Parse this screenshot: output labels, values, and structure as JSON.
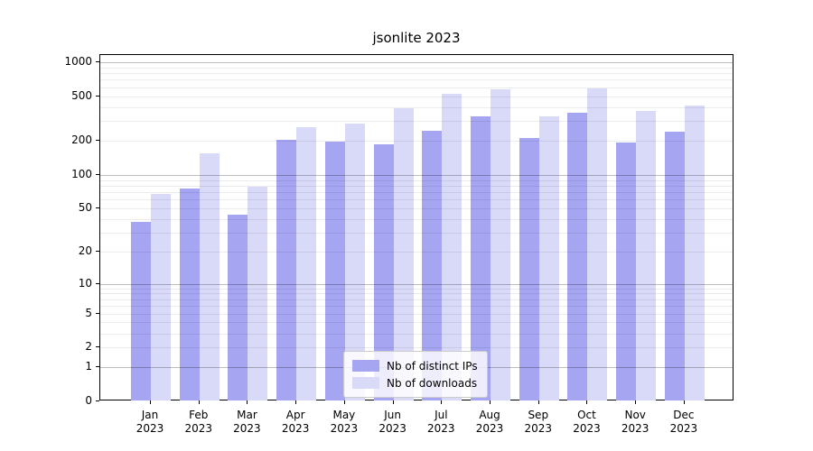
{
  "chart_data": {
    "type": "bar",
    "title": "jsonlite 2023",
    "categories": [
      "Jan",
      "Feb",
      "Mar",
      "Apr",
      "May",
      "Jun",
      "Jul",
      "Aug",
      "Sep",
      "Oct",
      "Nov",
      "Dec"
    ],
    "year_label": "2023",
    "series": [
      {
        "name": "Nb of distinct IPs",
        "color": "#a5a5f2",
        "values": [
          38,
          76,
          44,
          207,
          198,
          186,
          245,
          330,
          212,
          355,
          196,
          242
        ]
      },
      {
        "name": "Nb of downloads",
        "color": "#d9d9f8",
        "values": [
          68,
          155,
          78,
          264,
          285,
          390,
          525,
          575,
          330,
          585,
          370,
          412
        ]
      }
    ],
    "yticks": [
      0,
      1,
      2,
      5,
      10,
      20,
      50,
      100,
      200,
      500,
      1000
    ],
    "scale": "log1p",
    "ylim": [
      0,
      1160
    ],
    "grid": true,
    "legend_position": "lower center",
    "gridline_minor_values": [
      2,
      3,
      4,
      5,
      6,
      7,
      8,
      9,
      20,
      30,
      40,
      50,
      60,
      70,
      80,
      90,
      200,
      300,
      400,
      500,
      600,
      700,
      800,
      900
    ],
    "gridline_major_values": [
      1,
      10,
      100,
      1000
    ]
  }
}
